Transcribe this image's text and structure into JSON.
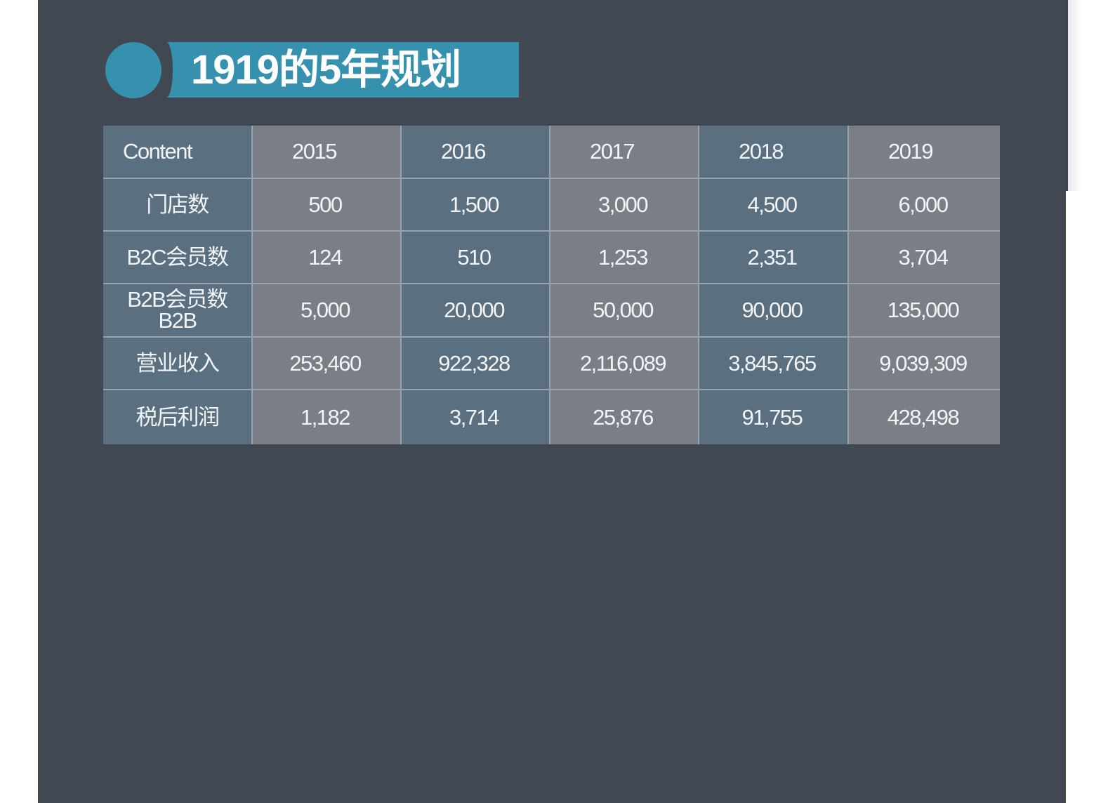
{
  "title": "1919的5年规划",
  "colors": {
    "slide_bg": "#414852",
    "accent": "#3591ad",
    "cell_dark": "#5a6f80",
    "cell_light": "#7a7f87",
    "text": "#f2f4f6"
  },
  "table": {
    "header": [
      "Content",
      "2015",
      "2016",
      "2017",
      "2018",
      "2019"
    ],
    "rows": [
      {
        "label": "门店数",
        "values": [
          "500",
          "1,500",
          "3,000",
          "4,500",
          "6,000"
        ]
      },
      {
        "label": "B2C会员数",
        "values": [
          "124",
          "510",
          "1,253",
          "2,351",
          "3,704"
        ]
      },
      {
        "label": "B2B会员数\nB2B",
        "values": [
          "5,000",
          "20,000",
          "50,000",
          "90,000",
          "135,000"
        ]
      },
      {
        "label": "营业收入",
        "values": [
          "253,460",
          "922,328",
          "2,116,089",
          "3,845,765",
          "9,039,309"
        ]
      },
      {
        "label": "税后利润",
        "values": [
          "1,182",
          "3,714",
          "25,876",
          "91,755",
          "428,498"
        ]
      }
    ]
  },
  "chart_data": {
    "type": "table",
    "title": "1919的5年规划",
    "columns": [
      "Content",
      "2015",
      "2016",
      "2017",
      "2018",
      "2019"
    ],
    "rows": [
      [
        "门店数",
        500,
        1500,
        3000,
        4500,
        6000
      ],
      [
        "B2C会员数",
        124,
        510,
        1253,
        2351,
        3704
      ],
      [
        "B2B会员数 B2B",
        5000,
        20000,
        50000,
        90000,
        135000
      ],
      [
        "营业收入",
        253460,
        922328,
        2116089,
        3845765,
        9039309
      ],
      [
        "税后利润",
        1182,
        3714,
        25876,
        91755,
        428498
      ]
    ]
  }
}
